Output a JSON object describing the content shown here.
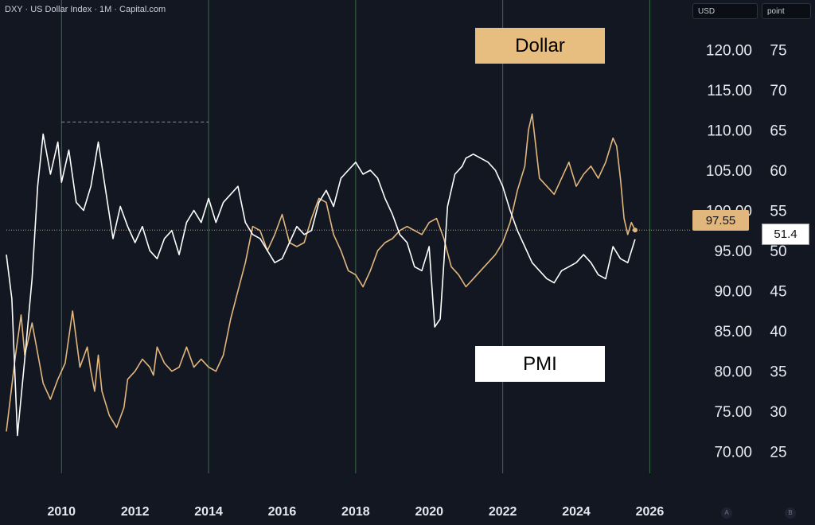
{
  "header": {
    "title": "DXY · US Dollar Index · 1M · Capital.com"
  },
  "units": {
    "left": "USD",
    "right": "point"
  },
  "labels": {
    "dollar": "Dollar",
    "pmi": "PMI"
  },
  "badges": {
    "dollar_last": "97.55",
    "pmi_last": "51.4"
  },
  "scale_buttons": {
    "a": "A",
    "b": "B"
  },
  "colors": {
    "background": "#121722",
    "dollar": "#e2b77d",
    "pmi": "#ffffff",
    "vline": "#3d6b48"
  },
  "chart_data": {
    "type": "line",
    "xlim": [
      2008.5,
      2026.9
    ],
    "x_ticks": [
      "2010",
      "2012",
      "2014",
      "2016",
      "2018",
      "2020",
      "2022",
      "2024",
      "2026"
    ],
    "y_left": {
      "lim": [
        67.3,
        123.8
      ],
      "ticks": [
        "120.00",
        "115.00",
        "110.00",
        "105.00",
        "100.00",
        "95.00",
        "90.00",
        "85.00",
        "80.00",
        "75.00",
        "70.00"
      ]
    },
    "y_right": {
      "lim": [
        22.3,
        78.8
      ],
      "ticks": [
        "75",
        "70",
        "65",
        "60",
        "55",
        "50",
        "45",
        "40",
        "35",
        "30",
        "25"
      ]
    },
    "vertical_markers": [
      2010,
      2014,
      2018,
      2022,
      2026
    ],
    "dashed_level": {
      "y": 111,
      "x": [
        2010,
        2014
      ]
    },
    "last_value_line": 97.55,
    "series": [
      {
        "name": "Dollar",
        "axis": "left",
        "x": [
          2008.5,
          2008.75,
          2008.9,
          2009.0,
          2009.2,
          2009.4,
          2009.5,
          2009.7,
          2009.9,
          2010.1,
          2010.3,
          2010.4,
          2010.5,
          2010.7,
          2010.8,
          2010.9,
          2011.0,
          2011.1,
          2011.3,
          2011.5,
          2011.7,
          2011.8,
          2012.0,
          2012.2,
          2012.4,
          2012.5,
          2012.6,
          2012.8,
          2013.0,
          2013.2,
          2013.4,
          2013.6,
          2013.8,
          2014.0,
          2014.2,
          2014.4,
          2014.6,
          2014.8,
          2015.0,
          2015.2,
          2015.4,
          2015.6,
          2015.8,
          2016.0,
          2016.2,
          2016.4,
          2016.6,
          2016.8,
          2017.0,
          2017.2,
          2017.4,
          2017.6,
          2017.8,
          2018.0,
          2018.2,
          2018.4,
          2018.6,
          2018.8,
          2019.0,
          2019.2,
          2019.4,
          2019.6,
          2019.8,
          2020.0,
          2020.2,
          2020.4,
          2020.6,
          2020.8,
          2021.0,
          2021.2,
          2021.4,
          2021.6,
          2021.8,
          2022.0,
          2022.2,
          2022.4,
          2022.6,
          2022.7,
          2022.8,
          2023.0,
          2023.2,
          2023.4,
          2023.6,
          2023.8,
          2024.0,
          2024.2,
          2024.4,
          2024.6,
          2024.8,
          2025.0,
          2025.1,
          2025.2,
          2025.3,
          2025.4,
          2025.5,
          2025.6
        ],
        "y": [
          72.5,
          82.0,
          87.0,
          82.0,
          86.0,
          81.0,
          78.5,
          76.5,
          79.0,
          81.0,
          87.5,
          84.0,
          80.5,
          83.0,
          80.0,
          77.5,
          82.0,
          77.5,
          74.5,
          73.0,
          75.5,
          79.0,
          80.0,
          81.5,
          80.5,
          79.5,
          83.0,
          81.0,
          80.0,
          80.5,
          83.0,
          80.5,
          81.5,
          80.5,
          80.0,
          82.0,
          86.5,
          90.0,
          93.5,
          98.0,
          97.5,
          95.0,
          97.0,
          99.5,
          96.0,
          95.5,
          96.0,
          99.0,
          101.5,
          101.0,
          97.0,
          95.0,
          92.5,
          92.0,
          90.5,
          92.5,
          95.0,
          96.0,
          96.5,
          97.5,
          98.0,
          97.5,
          97.0,
          98.5,
          99.0,
          96.5,
          93.0,
          92.0,
          90.5,
          91.5,
          92.5,
          93.5,
          94.5,
          96.0,
          98.5,
          102.5,
          105.5,
          110.0,
          112.0,
          104.0,
          103.0,
          102.0,
          104.0,
          106.0,
          103.0,
          104.5,
          105.5,
          104.0,
          106.0,
          109.0,
          108.0,
          104.0,
          99.0,
          97.0,
          98.5,
          97.55
        ]
      },
      {
        "name": "PMI",
        "axis": "right",
        "x": [
          2008.5,
          2008.65,
          2008.8,
          2009.0,
          2009.2,
          2009.35,
          2009.5,
          2009.7,
          2009.9,
          2010.0,
          2010.2,
          2010.4,
          2010.6,
          2010.8,
          2011.0,
          2011.2,
          2011.4,
          2011.6,
          2011.8,
          2012.0,
          2012.2,
          2012.4,
          2012.6,
          2012.8,
          2013.0,
          2013.2,
          2013.4,
          2013.6,
          2013.8,
          2014.0,
          2014.2,
          2014.4,
          2014.6,
          2014.8,
          2015.0,
          2015.2,
          2015.4,
          2015.6,
          2015.8,
          2016.0,
          2016.2,
          2016.4,
          2016.6,
          2016.8,
          2017.0,
          2017.2,
          2017.4,
          2017.6,
          2017.8,
          2018.0,
          2018.2,
          2018.4,
          2018.6,
          2018.8,
          2019.0,
          2019.2,
          2019.4,
          2019.6,
          2019.8,
          2020.0,
          2020.15,
          2020.3,
          2020.5,
          2020.7,
          2020.9,
          2021.0,
          2021.2,
          2021.4,
          2021.6,
          2021.8,
          2022.0,
          2022.2,
          2022.4,
          2022.6,
          2022.8,
          2023.0,
          2023.2,
          2023.4,
          2023.6,
          2023.8,
          2024.0,
          2024.2,
          2024.4,
          2024.6,
          2024.8,
          2025.0,
          2025.2,
          2025.4,
          2025.6
        ],
        "y": [
          49.5,
          44.0,
          27.0,
          36.5,
          46.5,
          58.0,
          64.5,
          59.5,
          63.5,
          58.5,
          62.5,
          56.0,
          55.0,
          58.0,
          63.5,
          57.5,
          51.5,
          55.5,
          53.0,
          51.0,
          53.0,
          50.0,
          49.0,
          51.5,
          52.5,
          49.5,
          53.5,
          55.0,
          53.5,
          56.5,
          53.5,
          56.0,
          57.0,
          58.0,
          53.5,
          52.0,
          51.5,
          50.0,
          48.5,
          49.0,
          51.0,
          53.0,
          52.0,
          52.5,
          56.0,
          57.5,
          55.5,
          59.0,
          60.0,
          61.0,
          59.5,
          60.0,
          59.0,
          56.5,
          54.5,
          52.0,
          51.0,
          48.0,
          47.5,
          50.5,
          40.5,
          41.5,
          55.5,
          59.5,
          60.5,
          61.5,
          62.0,
          61.5,
          61.0,
          60.0,
          58.0,
          55.0,
          52.5,
          50.5,
          48.5,
          47.5,
          46.5,
          46.0,
          47.5,
          48.0,
          48.5,
          49.5,
          48.5,
          47.0,
          46.5,
          50.5,
          49.0,
          48.5,
          51.4
        ]
      }
    ]
  }
}
